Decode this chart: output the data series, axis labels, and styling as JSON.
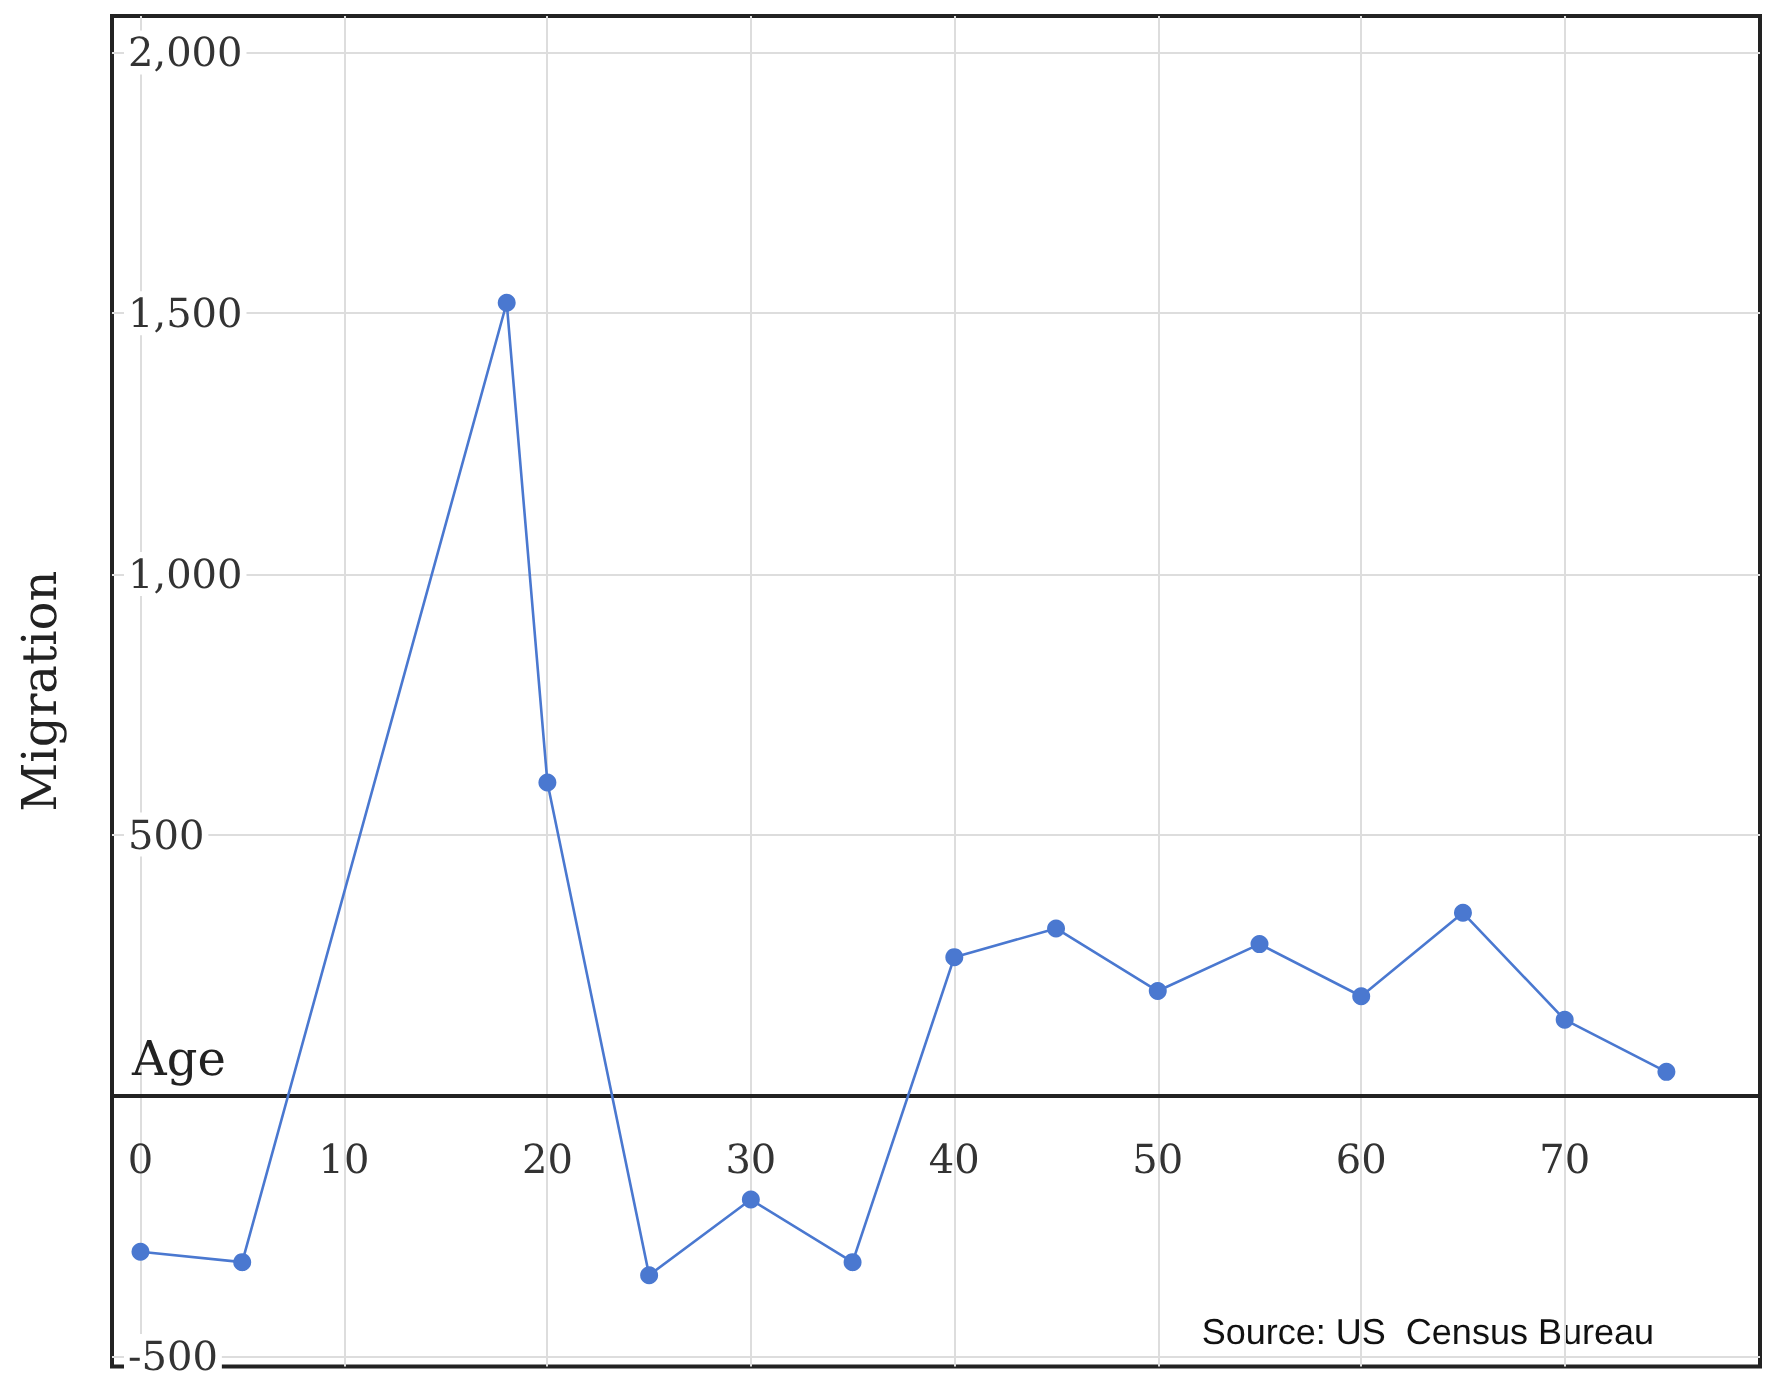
{
  "chart_data": {
    "type": "line",
    "xlabel": "Age",
    "ylabel": "Migration",
    "x": [
      0,
      5,
      18,
      20,
      25,
      30,
      35,
      40,
      45,
      50,
      55,
      60,
      65,
      70,
      75
    ],
    "series": [
      {
        "color": "#4a78d0",
        "values": [
          -300,
          -320,
          1520,
          600,
          -345,
          -200,
          -320,
          265,
          320,
          200,
          290,
          190,
          350,
          145,
          45
        ]
      }
    ],
    "xlim": [
      -1.4,
      79.6
    ],
    "xticks": [
      0,
      10,
      20,
      30,
      40,
      50,
      60,
      70
    ],
    "ylim": [
      -520,
      2070
    ],
    "yticks": [
      {
        "value": -500,
        "label": "-500"
      },
      {
        "value": 500,
        "label": "500"
      },
      {
        "value": 1000,
        "label": "1,000"
      },
      {
        "value": 1500,
        "label": "1,500"
      },
      {
        "value": 2000,
        "label": "2,000"
      }
    ],
    "grid": true,
    "marker": "circle",
    "line_style": "solid",
    "annotations": [
      "Source: US  Census Bureau"
    ]
  }
}
